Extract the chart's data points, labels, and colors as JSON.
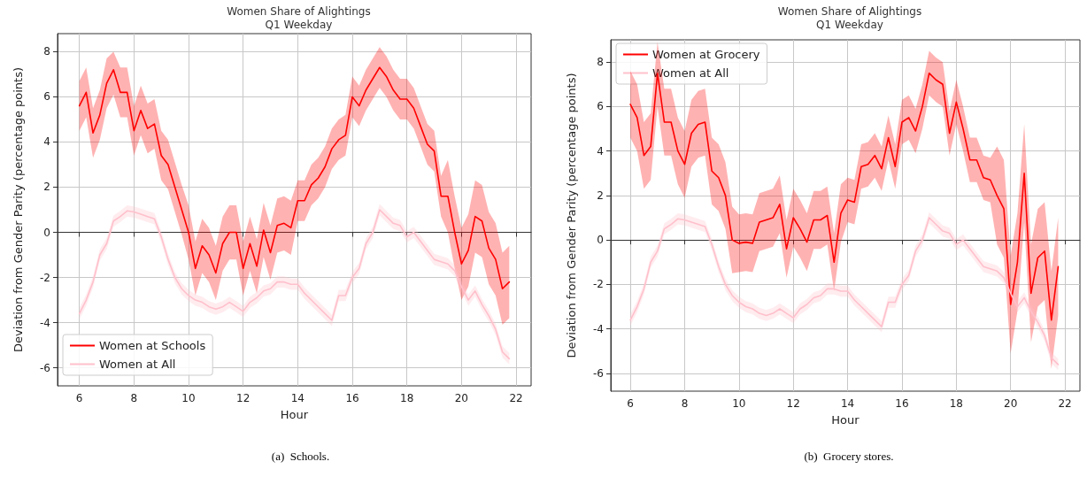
{
  "chart_data": [
    {
      "type": "line",
      "title": "Women Share of Alightings",
      "subtitle": "Q1 Weekday",
      "xlabel": "Hour",
      "ylabel": "Deviation from Gender Parity (percentage points)",
      "annotations": [
        "(a)  Schools."
      ],
      "legend": "bottom left",
      "grid": true,
      "xlim": [
        5.2,
        22.55
      ],
      "xticks": [
        6,
        8,
        10,
        12,
        14,
        16,
        18,
        20,
        22
      ],
      "ylim": [
        -6.8,
        8.8
      ],
      "yticks": [
        -6,
        -4,
        -2,
        0,
        2,
        4,
        6,
        8
      ],
      "x": [
        6,
        6.25,
        6.5,
        6.75,
        7,
        7.25,
        7.5,
        7.75,
        8,
        8.25,
        8.5,
        8.75,
        9,
        9.25,
        9.5,
        9.75,
        10,
        10.25,
        10.5,
        10.75,
        11,
        11.25,
        11.5,
        11.75,
        12,
        12.25,
        12.5,
        12.75,
        13,
        13.25,
        13.5,
        13.75,
        14,
        14.25,
        14.5,
        14.75,
        15,
        15.25,
        15.5,
        15.75,
        16,
        16.25,
        16.5,
        16.75,
        17,
        17.25,
        17.5,
        17.75,
        18,
        18.25,
        18.5,
        18.75,
        19,
        19.25,
        19.5,
        19.75,
        20,
        20.25,
        20.5,
        20.75,
        21,
        21.25,
        21.5,
        21.75
      ],
      "series": [
        {
          "name": "Women at Schools",
          "color": "#ff0000",
          "values": [
            5.6,
            6.2,
            4.4,
            5.2,
            6.6,
            7.2,
            6.2,
            6.2,
            4.5,
            5.4,
            4.6,
            4.8,
            3.4,
            3.0,
            2.0,
            1.0,
            0,
            -1.6,
            -0.6,
            -1.0,
            -1.8,
            -0.5,
            0,
            0,
            -1.6,
            -0.5,
            -1.5,
            0.1,
            -0.9,
            0.3,
            0.4,
            0.2,
            1.4,
            1.4,
            2.1,
            2.4,
            2.9,
            3.7,
            4.1,
            4.3,
            6.0,
            5.6,
            6.3,
            6.8,
            7.3,
            6.9,
            6.3,
            5.9,
            5.9,
            5.5,
            4.7,
            3.9,
            3.6,
            1.6,
            1.6,
            0,
            -1.4,
            -0.8,
            0.7,
            0.5,
            -0.7,
            -1.2,
            -2.5,
            -2.2
          ],
          "lower": [
            4.5,
            5.1,
            3.3,
            4.1,
            5.5,
            6.1,
            5.1,
            5.1,
            3.4,
            4.3,
            3.5,
            3.7,
            2.3,
            1.9,
            0.9,
            -0.1,
            -1.2,
            -2.8,
            -1.8,
            -2.2,
            -3.0,
            -1.7,
            -1.2,
            -1.2,
            -2.8,
            -1.7,
            -2.7,
            -1.1,
            -2.1,
            -0.9,
            -0.8,
            -1.0,
            0.5,
            0.5,
            1.2,
            1.5,
            2.0,
            2.8,
            3.2,
            3.4,
            5.1,
            4.7,
            5.4,
            5.9,
            6.4,
            6.0,
            5.4,
            5.0,
            5.0,
            4.6,
            3.8,
            3.0,
            2.7,
            0.7,
            0,
            -1.6,
            -3.0,
            -2.4,
            -0.9,
            -1.1,
            -2.3,
            -2.8,
            -4.1,
            -3.8
          ],
          "upper": [
            6.7,
            7.3,
            5.5,
            6.3,
            7.7,
            8.0,
            7.3,
            7.3,
            5.6,
            6.5,
            5.7,
            5.9,
            4.5,
            4.1,
            3.1,
            2.1,
            1.2,
            -0.4,
            0.6,
            0.2,
            -0.6,
            0.7,
            1.2,
            1.2,
            -0.4,
            0.7,
            -0.3,
            1.3,
            0.3,
            1.5,
            1.6,
            1.4,
            2.3,
            2.3,
            3.0,
            3.3,
            3.8,
            4.6,
            5.0,
            5.2,
            6.9,
            6.5,
            7.2,
            7.7,
            8.2,
            7.8,
            7.2,
            6.8,
            6.8,
            6.4,
            5.6,
            4.8,
            4.5,
            2.5,
            3.2,
            1.6,
            0.2,
            0.8,
            2.3,
            2.1,
            0.9,
            0.4,
            -0.9,
            -0.6
          ]
        },
        {
          "name": "Women at All",
          "color": "#ffc0cb",
          "values": [
            -3.6,
            -3.0,
            -2.2,
            -1.0,
            -0.5,
            0.5,
            0.7,
            0.95,
            0.9,
            0.8,
            0.7,
            0.6,
            -0.2,
            -1.2,
            -2.0,
            -2.5,
            -2.8,
            -3.0,
            -3.1,
            -3.3,
            -3.4,
            -3.3,
            -3.1,
            -3.3,
            -3.5,
            -3.1,
            -2.9,
            -2.6,
            -2.5,
            -2.2,
            -2.2,
            -2.3,
            -2.3,
            -2.7,
            -3.0,
            -3.3,
            -3.6,
            -3.9,
            -2.8,
            -2.8,
            -2.0,
            -1.6,
            -0.5,
            0,
            1.0,
            0.7,
            0.4,
            0.3,
            -0.2,
            0,
            -0.4,
            -0.8,
            -1.2,
            -1.3,
            -1.4,
            -1.7,
            -2.4,
            -3.0,
            -2.6,
            -3.2,
            -3.7,
            -4.3,
            -5.3,
            -5.6
          ],
          "lower": [
            -3.85,
            -3.25,
            -2.45,
            -1.25,
            -0.75,
            0.25,
            0.45,
            0.7,
            0.65,
            0.55,
            0.45,
            0.35,
            -0.45,
            -1.45,
            -2.25,
            -2.75,
            -3.05,
            -3.25,
            -3.35,
            -3.55,
            -3.65,
            -3.55,
            -3.35,
            -3.55,
            -3.75,
            -3.35,
            -3.15,
            -2.85,
            -2.75,
            -2.45,
            -2.45,
            -2.55,
            -2.55,
            -2.95,
            -3.25,
            -3.55,
            -3.85,
            -4.15,
            -3.05,
            -3.05,
            -2.25,
            -1.85,
            -0.75,
            -0.25,
            0.75,
            0.45,
            0.15,
            0.05,
            -0.45,
            -0.25,
            -0.65,
            -1.05,
            -1.45,
            -1.55,
            -1.65,
            -1.95,
            -2.65,
            -3.25,
            -2.85,
            -3.45,
            -3.95,
            -4.55,
            -5.55,
            -5.85
          ],
          "upper": [
            -3.35,
            -2.75,
            -1.95,
            -0.75,
            -0.25,
            0.75,
            0.95,
            1.2,
            1.15,
            1.05,
            0.95,
            0.85,
            0.05,
            -0.95,
            -1.75,
            -2.25,
            -2.55,
            -2.75,
            -2.85,
            -3.05,
            -3.15,
            -3.05,
            -2.85,
            -3.05,
            -3.25,
            -2.85,
            -2.65,
            -2.35,
            -2.25,
            -1.95,
            -1.95,
            -2.05,
            -2.05,
            -2.45,
            -2.75,
            -3.05,
            -3.35,
            -3.65,
            -2.55,
            -2.55,
            -1.75,
            -1.35,
            -0.25,
            0.25,
            1.25,
            0.95,
            0.65,
            0.55,
            0.05,
            0.25,
            -0.15,
            -0.55,
            -0.95,
            -1.05,
            -1.15,
            -1.45,
            -2.15,
            -2.75,
            -2.35,
            -2.95,
            -3.45,
            -4.05,
            -5.05,
            -5.35
          ]
        }
      ]
    },
    {
      "type": "line",
      "title": "Women Share of Alightings",
      "subtitle": "Q1 Weekday",
      "xlabel": "Hour",
      "ylabel": "Deviation from Gender Parity (percentage points)",
      "annotations": [
        "(b)  Grocery stores."
      ],
      "legend": "top left",
      "grid": true,
      "xlim": [
        5.28,
        22.55
      ],
      "xticks": [
        6,
        8,
        10,
        12,
        14,
        16,
        18,
        20,
        22
      ],
      "ylim": [
        -6.8,
        9.0
      ],
      "yticks": [
        -6,
        -4,
        -2,
        0,
        2,
        4,
        6,
        8
      ],
      "x": [
        6,
        6.25,
        6.5,
        6.75,
        7,
        7.25,
        7.5,
        7.75,
        8,
        8.25,
        8.5,
        8.75,
        9,
        9.25,
        9.5,
        9.75,
        10,
        10.25,
        10.5,
        10.75,
        11,
        11.25,
        11.5,
        11.75,
        12,
        12.25,
        12.5,
        12.75,
        13,
        13.25,
        13.5,
        13.75,
        14,
        14.25,
        14.5,
        14.75,
        15,
        15.25,
        15.5,
        15.75,
        16,
        16.25,
        16.5,
        16.75,
        17,
        17.25,
        17.5,
        17.75,
        18,
        18.25,
        18.5,
        18.75,
        19,
        19.25,
        19.5,
        19.75,
        20,
        20.25,
        20.5,
        20.75,
        21,
        21.25,
        21.5,
        21.75
      ],
      "series": [
        {
          "name": "Women at Grocery",
          "color": "#ff0000",
          "values": [
            6.1,
            5.5,
            3.8,
            4.2,
            7.5,
            5.3,
            5.3,
            4.0,
            3.4,
            4.8,
            5.2,
            5.3,
            3.1,
            2.8,
            2.0,
            0,
            -0.15,
            -0.1,
            -0.15,
            0.8,
            0.9,
            1.0,
            1.6,
            -0.4,
            1.0,
            0.5,
            -0.1,
            0.9,
            0.9,
            1.1,
            -1.0,
            1.2,
            1.8,
            1.7,
            3.3,
            3.4,
            3.8,
            3.2,
            4.6,
            3.3,
            5.3,
            5.5,
            4.9,
            6.0,
            7.5,
            7.2,
            7.0,
            4.8,
            6.2,
            5.0,
            3.6,
            3.6,
            2.8,
            2.7,
            2.0,
            1.4,
            -2.9,
            -1.0,
            3.0,
            -2.4,
            -0.8,
            -0.5,
            -3.6,
            -1.2
          ],
          "lower": [
            4.6,
            4.0,
            2.3,
            2.7,
            6.0,
            3.8,
            3.8,
            2.5,
            1.9,
            3.3,
            3.7,
            3.8,
            1.6,
            1.3,
            0.5,
            -1.5,
            -1.45,
            -1.4,
            -1.45,
            -0.5,
            -0.4,
            -0.3,
            0.3,
            -1.7,
            -0.3,
            -0.8,
            -1.4,
            -0.4,
            -0.4,
            -0.2,
            -2.3,
            -0.1,
            0.8,
            0.7,
            2.3,
            2.4,
            2.8,
            2.2,
            3.6,
            2.3,
            4.3,
            4.5,
            3.9,
            5.0,
            6.5,
            6.2,
            6.0,
            3.8,
            5.2,
            4.0,
            2.6,
            2.6,
            1.8,
            1.7,
            -0.2,
            -0.8,
            -5.1,
            -3.2,
            0.8,
            -4.6,
            -3.0,
            -2.7,
            -5.8,
            -3.4
          ],
          "upper": [
            7.6,
            7.0,
            5.3,
            5.7,
            8.9,
            6.8,
            6.8,
            5.5,
            4.9,
            6.3,
            6.7,
            6.8,
            4.6,
            4.3,
            3.5,
            1.5,
            1.15,
            1.2,
            1.15,
            2.1,
            2.2,
            2.3,
            2.9,
            0.9,
            2.3,
            1.8,
            1.2,
            2.2,
            2.2,
            2.4,
            0.3,
            2.5,
            2.8,
            2.7,
            4.3,
            4.4,
            4.8,
            4.2,
            5.6,
            4.3,
            6.3,
            6.5,
            5.9,
            7.0,
            8.5,
            8.2,
            8.0,
            5.8,
            7.2,
            6.0,
            4.6,
            4.6,
            3.8,
            3.7,
            4.2,
            3.6,
            -0.7,
            1.2,
            5.2,
            -0.2,
            1.4,
            1.7,
            -1.4,
            1.0
          ]
        },
        {
          "name": "Women at All",
          "color": "#ffc0cb",
          "values": [
            -3.6,
            -3.0,
            -2.2,
            -1.0,
            -0.5,
            0.5,
            0.7,
            0.95,
            0.9,
            0.8,
            0.7,
            0.6,
            -0.2,
            -1.2,
            -2.0,
            -2.5,
            -2.8,
            -3.0,
            -3.1,
            -3.3,
            -3.4,
            -3.3,
            -3.1,
            -3.3,
            -3.5,
            -3.1,
            -2.9,
            -2.6,
            -2.5,
            -2.2,
            -2.2,
            -2.3,
            -2.3,
            -2.7,
            -3.0,
            -3.3,
            -3.6,
            -3.9,
            -2.8,
            -2.8,
            -2.0,
            -1.6,
            -0.5,
            0,
            1.0,
            0.7,
            0.4,
            0.3,
            -0.2,
            0,
            -0.4,
            -0.8,
            -1.2,
            -1.3,
            -1.4,
            -1.7,
            -2.4,
            -3.0,
            -2.6,
            -3.2,
            -3.7,
            -4.3,
            -5.3,
            -5.6
          ],
          "lower": [
            -3.85,
            -3.25,
            -2.45,
            -1.25,
            -0.75,
            0.25,
            0.45,
            0.7,
            0.65,
            0.55,
            0.45,
            0.35,
            -0.45,
            -1.45,
            -2.25,
            -2.75,
            -3.05,
            -3.25,
            -3.35,
            -3.55,
            -3.65,
            -3.55,
            -3.35,
            -3.55,
            -3.75,
            -3.35,
            -3.15,
            -2.85,
            -2.75,
            -2.45,
            -2.45,
            -2.55,
            -2.55,
            -2.95,
            -3.25,
            -3.55,
            -3.85,
            -4.15,
            -3.05,
            -3.05,
            -2.25,
            -1.85,
            -0.75,
            -0.25,
            0.75,
            0.45,
            0.15,
            0.05,
            -0.45,
            -0.25,
            -0.65,
            -1.05,
            -1.45,
            -1.55,
            -1.65,
            -1.95,
            -2.65,
            -3.25,
            -2.85,
            -3.45,
            -3.95,
            -4.55,
            -5.55,
            -5.85
          ],
          "upper": [
            -3.35,
            -2.75,
            -1.95,
            -0.75,
            -0.25,
            0.75,
            0.95,
            1.2,
            1.15,
            1.05,
            0.95,
            0.85,
            0.05,
            -0.95,
            -1.75,
            -2.25,
            -2.55,
            -2.75,
            -2.85,
            -3.05,
            -3.15,
            -3.05,
            -2.85,
            -3.05,
            -3.25,
            -2.85,
            -2.65,
            -2.35,
            -2.25,
            -1.95,
            -1.95,
            -2.05,
            -2.05,
            -2.45,
            -2.75,
            -3.05,
            -3.35,
            -3.65,
            -2.55,
            -2.55,
            -1.75,
            -1.35,
            -0.25,
            0.25,
            1.25,
            0.95,
            0.65,
            0.55,
            0.05,
            0.25,
            -0.15,
            -0.55,
            -0.95,
            -1.05,
            -1.15,
            -1.45,
            -2.15,
            -2.75,
            -2.35,
            -2.95,
            -3.45,
            -4.05,
            -5.05,
            -5.35
          ]
        }
      ]
    }
  ]
}
